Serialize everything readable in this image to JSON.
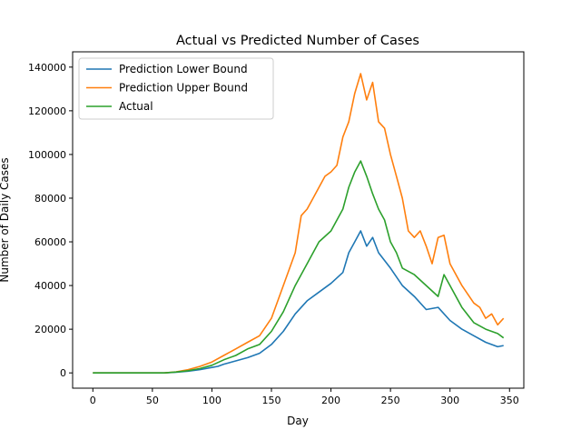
{
  "chart_data": {
    "type": "line",
    "title": "Actual vs Predicted Number of Cases",
    "xlabel": "Day",
    "ylabel": "Number of Daily Cases",
    "xlim": [
      -17,
      362
    ],
    "ylim": [
      -7000,
      147000
    ],
    "xticks": [
      0,
      50,
      100,
      150,
      200,
      250,
      300,
      350
    ],
    "yticks": [
      0,
      20000,
      40000,
      60000,
      80000,
      100000,
      120000,
      140000
    ],
    "grid": false,
    "legend_position": "top-left",
    "series": [
      {
        "name": "Prediction Lower Bound",
        "color": "#1f77b4",
        "x": [
          0,
          60,
          70,
          80,
          90,
          100,
          105,
          110,
          120,
          130,
          140,
          150,
          160,
          170,
          180,
          190,
          200,
          210,
          215,
          220,
          225,
          230,
          235,
          240,
          250,
          260,
          270,
          280,
          290,
          300,
          310,
          320,
          330,
          340,
          345
        ],
        "y": [
          0,
          0,
          300,
          800,
          1500,
          2500,
          3000,
          4000,
          5500,
          7000,
          9000,
          13000,
          19000,
          27000,
          33000,
          37000,
          41000,
          46000,
          55000,
          60000,
          65000,
          58000,
          62000,
          55000,
          48000,
          40000,
          35000,
          29000,
          30000,
          24000,
          20000,
          17000,
          14000,
          12000,
          12500
        ]
      },
      {
        "name": "Prediction Upper Bound",
        "color": "#ff7f0e",
        "x": [
          0,
          60,
          70,
          80,
          90,
          100,
          110,
          120,
          130,
          140,
          150,
          160,
          170,
          175,
          180,
          185,
          190,
          195,
          200,
          205,
          210,
          215,
          220,
          225,
          230,
          235,
          240,
          245,
          250,
          255,
          260,
          265,
          270,
          275,
          280,
          285,
          290,
          295,
          300,
          310,
          320,
          325,
          330,
          335,
          340,
          345
        ],
        "y": [
          0,
          0,
          500,
          1500,
          3000,
          5000,
          8000,
          11000,
          14000,
          17000,
          25000,
          40000,
          55000,
          72000,
          75000,
          80000,
          85000,
          90000,
          92000,
          95000,
          108000,
          115000,
          128000,
          137000,
          125000,
          133000,
          115000,
          112000,
          100000,
          90000,
          80000,
          65000,
          62000,
          65000,
          58000,
          50000,
          62000,
          63000,
          50000,
          40000,
          32000,
          30000,
          25000,
          27000,
          22000,
          25000
        ]
      },
      {
        "name": "Actual",
        "color": "#2ca02c",
        "x": [
          0,
          60,
          70,
          80,
          90,
          100,
          110,
          120,
          130,
          140,
          150,
          160,
          170,
          180,
          190,
          200,
          210,
          215,
          220,
          225,
          230,
          235,
          240,
          245,
          250,
          255,
          260,
          270,
          280,
          290,
          295,
          300,
          310,
          320,
          330,
          340,
          345
        ],
        "y": [
          0,
          0,
          400,
          1000,
          2000,
          3500,
          6000,
          8000,
          11000,
          13000,
          19000,
          28000,
          40000,
          50000,
          60000,
          65000,
          75000,
          85000,
          92000,
          97000,
          90000,
          82000,
          75000,
          70000,
          60000,
          55000,
          48000,
          45000,
          40000,
          35000,
          45000,
          40000,
          30000,
          23000,
          20000,
          18000,
          16000
        ]
      }
    ]
  }
}
